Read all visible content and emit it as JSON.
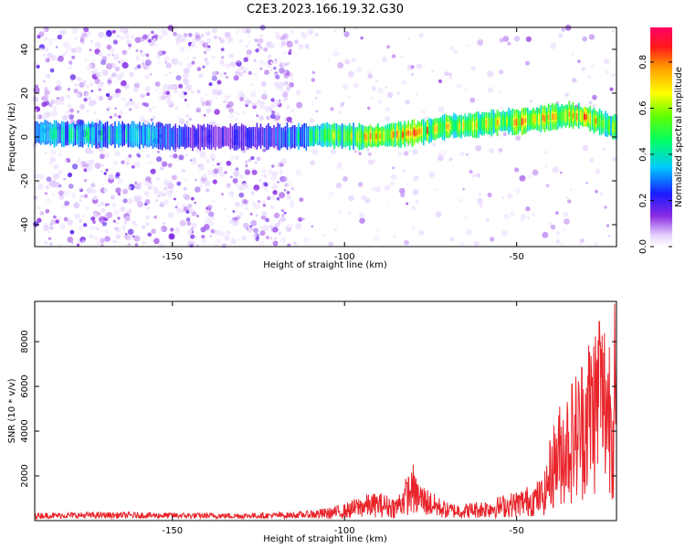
{
  "figure_title": "C2E3.2023.166.19.32.G30",
  "chart_data": [
    {
      "type": "heatmap",
      "title": "C2E3.2023.166.19.32.G30",
      "xlabel": "Height of straight line (km)",
      "ylabel": "Frequency (Hz)",
      "xlim": [
        -190,
        -21
      ],
      "ylim": [
        -50,
        50
      ],
      "xticks": [
        -150,
        -100,
        -50
      ],
      "xtick_labels": [
        "-150",
        "-100",
        "-50"
      ],
      "yticks": [
        -40,
        -20,
        0,
        20,
        40
      ],
      "ytick_labels": [
        "-40",
        "-20",
        "0",
        "20",
        "40"
      ],
      "colorbar": {
        "label": "Normalized spectral amplitude",
        "range": [
          0,
          0.95
        ],
        "ticks": [
          0.0,
          0.2,
          0.4,
          0.6,
          0.8
        ],
        "tick_labels": [
          "0.0",
          "0.2",
          "0.4",
          "0.6",
          "0.8"
        ],
        "colormap": "rainbow (white-violet-blue-cyan-green-yellow-orange-red-magenta)"
      },
      "ridge": {
        "description": "Dominant frequency track vs height",
        "x": [
          -190,
          -175,
          -160,
          -150,
          -140,
          -125,
          -115,
          -105,
          -95,
          -85,
          -80,
          -75,
          -70,
          -65,
          -60,
          -55,
          -50,
          -45,
          -40,
          -35,
          -30,
          -25,
          -21
        ],
        "frequency_hz": [
          2,
          1,
          1,
          0,
          0,
          0,
          0,
          1,
          0,
          1,
          2,
          3,
          5,
          5,
          6,
          7,
          7,
          8,
          9,
          10,
          9,
          6,
          4
        ],
        "amplitude": [
          0.45,
          0.5,
          0.45,
          0.35,
          0.25,
          0.3,
          0.45,
          0.6,
          0.7,
          0.8,
          0.85,
          0.75,
          0.7,
          0.65,
          0.7,
          0.75,
          0.85,
          0.8,
          0.85,
          0.9,
          0.85,
          0.75,
          0.6
        ]
      },
      "noise_region": [
        -190,
        -115
      ]
    },
    {
      "type": "line",
      "xlabel": "Height of straight line (km)",
      "ylabel": "SNR (10 * v/v)",
      "xlim": [
        -190,
        -21
      ],
      "ylim": [
        0,
        9800
      ],
      "xticks": [
        -150,
        -100,
        -50
      ],
      "xtick_labels": [
        "-150",
        "-100",
        "-50"
      ],
      "yticks": [
        2000,
        4000,
        6000,
        8000
      ],
      "ytick_labels": [
        "2000",
        "4000",
        "6000",
        "8000"
      ],
      "color": "#e8242a",
      "envelope": {
        "x": [
          -190,
          -170,
          -150,
          -130,
          -115,
          -105,
          -100,
          -95,
          -90,
          -85,
          -81,
          -78,
          -74,
          -70,
          -65,
          -60,
          -55,
          -50,
          -45,
          -42,
          -40,
          -38,
          -35,
          -32,
          -30,
          -27,
          -25,
          -23,
          -21
        ],
        "snr": [
          300,
          320,
          300,
          280,
          320,
          420,
          560,
          850,
          950,
          780,
          1700,
          1300,
          900,
          600,
          580,
          680,
          820,
          1000,
          1250,
          1500,
          3000,
          3800,
          4600,
          5200,
          6100,
          6900,
          7100,
          6700,
          5500
        ]
      },
      "spikes": [
        {
          "x": -80,
          "snr": 2500
        },
        {
          "x": -26,
          "snr": 8900
        },
        {
          "x": -21.5,
          "snr": 9700
        }
      ]
    }
  ]
}
